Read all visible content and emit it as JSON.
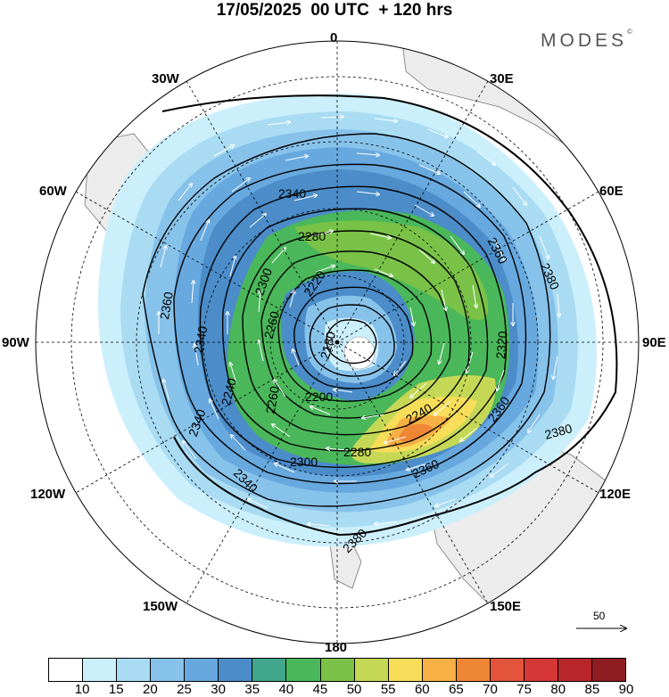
{
  "header": {
    "title": "17/05/2025  00 UTC  + 120 hrs",
    "brand": "MODES",
    "brand_mark": "©"
  },
  "map": {
    "projection": "south polar stereographic",
    "longitude_labels": {
      "top": "0",
      "top_right": "30E",
      "right_upper": "60E",
      "right": "90E",
      "right_lower": "120E",
      "bottom_right": "150E",
      "bottom": "180",
      "bottom_left": "150W",
      "left_lower": "120W",
      "left": "90W",
      "left_upper": "60W",
      "top_left": "30W"
    },
    "contour_labels": [
      "2340",
      "2280",
      "2360",
      "2380",
      "2300",
      "2220",
      "2360",
      "2340",
      "2260",
      "2180",
      "2320",
      "2240",
      "2240",
      "2200",
      "2360",
      "2380",
      "2280",
      "2300",
      "2340",
      "2360",
      "2380",
      "2260",
      "2340"
    ],
    "high_wind_core": "60-70",
    "reference_vector": "50"
  },
  "colorbar": {
    "levels": [
      "10",
      "15",
      "20",
      "25",
      "30",
      "35",
      "40",
      "45",
      "50",
      "55",
      "60",
      "65",
      "70",
      "75",
      "80",
      "85",
      "90"
    ],
    "colors": [
      "#ffffff",
      "#cceffc",
      "#a9dcf3",
      "#87c2ea",
      "#67a8df",
      "#4b8cc9",
      "#41a68b",
      "#4ab75a",
      "#79c247",
      "#c5d855",
      "#f7dd5a",
      "#f6b043",
      "#ef8636",
      "#e4543a",
      "#d53636",
      "#b8262c",
      "#8f1c20"
    ]
  }
}
